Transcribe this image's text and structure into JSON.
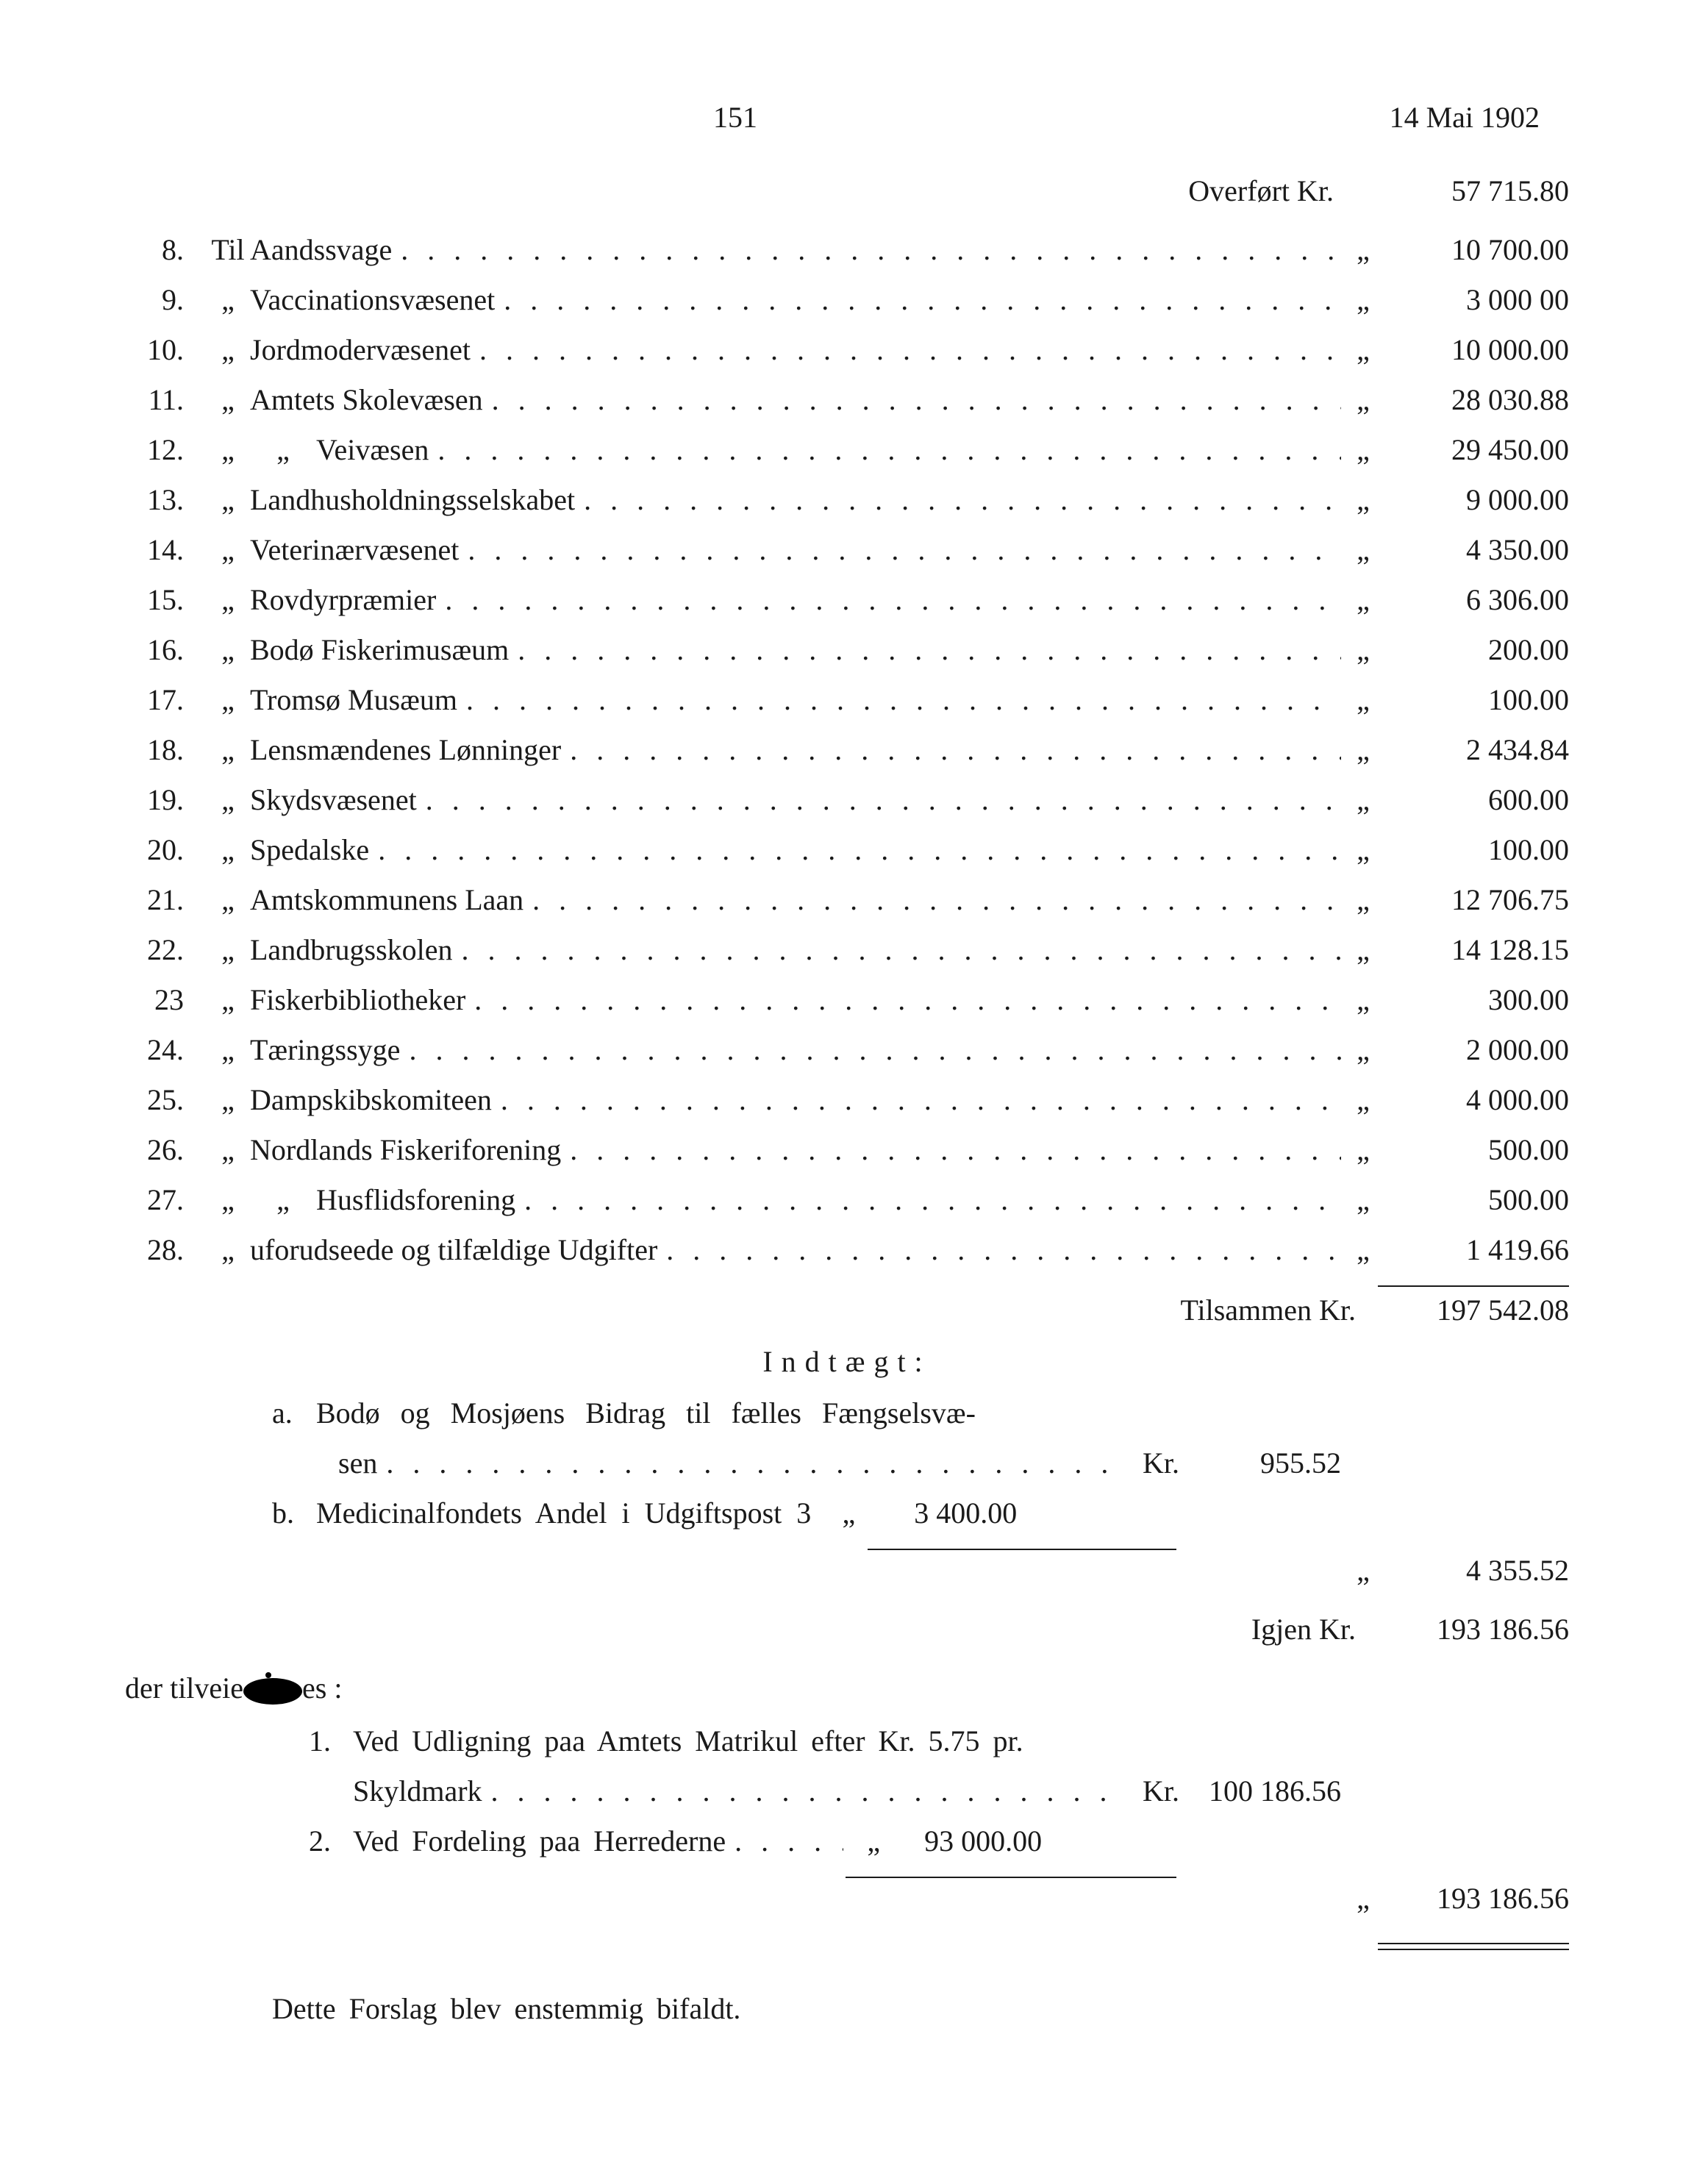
{
  "header": {
    "page_number": "151",
    "date": "14 Mai 1902"
  },
  "overfort": {
    "label": "Overført Kr.",
    "amount": "57 715.80"
  },
  "items": [
    {
      "num": "8.",
      "prefix": "Til",
      "label": "Aandssvage",
      "amount": "10 700.00"
    },
    {
      "num": "9.",
      "prefix": "„",
      "label": "Vaccinationsvæsenet",
      "amount": "3 000 00"
    },
    {
      "num": "10.",
      "prefix": "„",
      "label": "Jordmodervæsenet",
      "amount": "10 000.00"
    },
    {
      "num": "11.",
      "prefix": "„",
      "label": "Amtets Skolevæsen",
      "amount": "28 030.88"
    },
    {
      "num": "12.",
      "prefix": "„",
      "prefix2": "„",
      "label": "Veivæsen",
      "amount": "29 450.00"
    },
    {
      "num": "13.",
      "prefix": "„",
      "label": "Landhusholdningsselskabet",
      "amount": "9 000.00"
    },
    {
      "num": "14.",
      "prefix": "„",
      "label": "Veterinærvæsenet",
      "amount": "4 350.00"
    },
    {
      "num": "15.",
      "prefix": "„",
      "label": "Rovdyrpræmier",
      "amount": "6 306.00"
    },
    {
      "num": "16.",
      "prefix": "„",
      "label": "Bodø Fiskerimusæum",
      "amount": "200.00"
    },
    {
      "num": "17.",
      "prefix": "„",
      "label": "Tromsø Musæum",
      "amount": "100.00"
    },
    {
      "num": "18.",
      "prefix": "„",
      "label": "Lensmændenes Lønninger",
      "amount": "2 434.84"
    },
    {
      "num": "19.",
      "prefix": "„",
      "label": "Skydsvæsenet",
      "amount": "600.00"
    },
    {
      "num": "20.",
      "prefix": "„",
      "label": "Spedalske",
      "amount": "100.00"
    },
    {
      "num": "21.",
      "prefix": "„",
      "label": "Amtskommunens Laan",
      "amount": "12 706.75"
    },
    {
      "num": "22.",
      "prefix": "„",
      "label": "Landbrugsskolen",
      "amount": "14 128.15"
    },
    {
      "num": "23",
      "prefix": "„",
      "label": "Fiskerbibliotheker",
      "amount": "300.00"
    },
    {
      "num": "24.",
      "prefix": "„",
      "label": "Tæringssyge",
      "amount": "2 000.00"
    },
    {
      "num": "25.",
      "prefix": "„",
      "label": "Dampskibskomiteen",
      "amount": "4 000.00"
    },
    {
      "num": "26.",
      "prefix": "„",
      "label": "Nordlands Fiskeriforening",
      "amount": "500.00"
    },
    {
      "num": "27.",
      "prefix": "„",
      "prefix2": "„",
      "label": "Husflidsforening",
      "amount": "500.00"
    },
    {
      "num": "28.",
      "prefix": "„",
      "label": "uforudseede og tilfældige Udgifter",
      "amount": "1 419.66"
    }
  ],
  "tilsammen": {
    "label": "Tilsammen Kr.",
    "amount": "197 542.08"
  },
  "indtaegt_heading": "Indtægt:",
  "indtaegt": {
    "a": {
      "letter": "a.",
      "line1": "Bodø og Mosjøens Bidrag til fælles Fængselsvæ-",
      "line2_label": "sen",
      "kr": "Kr.",
      "amount": "955.52"
    },
    "b": {
      "letter": "b.",
      "label": "Medicinalfondets Andel i Udgiftspost 3",
      "kr": "„",
      "amount": "3 400.00"
    },
    "subtotal_kr": "„",
    "subtotal": "4 355.52"
  },
  "igjen": {
    "label": "Igjen Kr.",
    "amount": "193 186.56"
  },
  "der_text_1": "der tilveie",
  "der_text_2": "es :",
  "fordeling": {
    "item1": {
      "num": "1.",
      "line1": "Ved Udligning paa Amtets Matrikul efter Kr. 5.75 pr.",
      "line2_label": "Skyldmark",
      "kr": "Kr.",
      "amount": "100 186.56"
    },
    "item2": {
      "num": "2.",
      "label": "Ved Fordeling paa Herrederne",
      "kr": "„",
      "amount": "93 000.00"
    },
    "total_kr": "„",
    "total": "193 186.56"
  },
  "final_text": "Dette Forslag blev enstemmig bifaldt.",
  "dots_fill": ". . . . . . . . . . . . . . . . . . . . . . . . . . . . . . . . . . . . . . . . . . . .",
  "ditto_mark": "„"
}
